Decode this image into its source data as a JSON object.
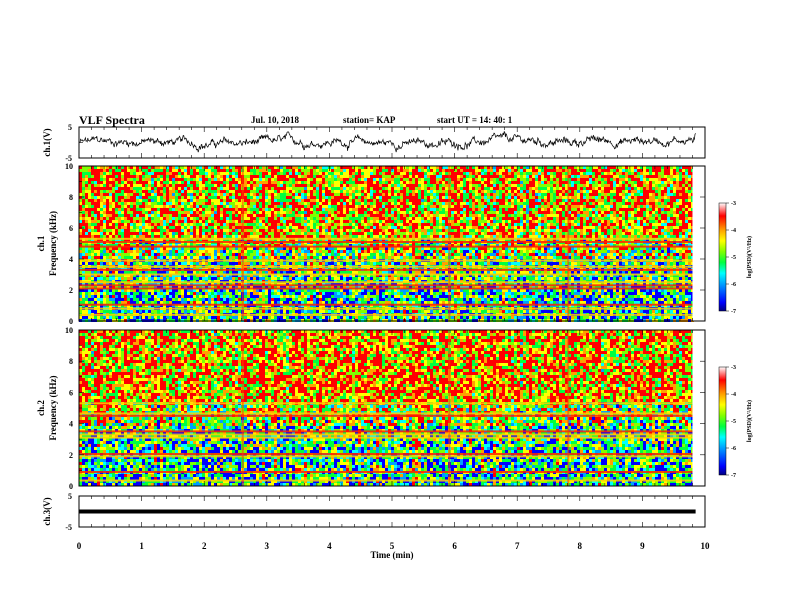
{
  "header": {
    "title": "VLF Spectra",
    "date": "Jul. 10, 2018",
    "station": "station= KAP",
    "start": "start  UT =   14: 40: 1"
  },
  "colors": {
    "spectrogram_colormap": [
      "#000080",
      "#0000ff",
      "#00a0ff",
      "#00ffff",
      "#00ff40",
      "#80ff00",
      "#ffff00",
      "#ffa000",
      "#ff0000",
      "#ffffff"
    ],
    "trace": "#000000"
  },
  "chart_data": [
    {
      "type": "line",
      "ylabel": "ch.1(V)",
      "ylim": [
        -5,
        5
      ],
      "yticks": [
        "5",
        "-5"
      ],
      "xlim": [
        0,
        10
      ],
      "description_series": "noisy waveform fluctuating near 0 V"
    },
    {
      "type": "heatmap",
      "ylabel": "ch.1\nFrequency (kHz)",
      "ylabel_lines": [
        "ch.1",
        "Frequency (kHz)"
      ],
      "ylim": [
        0,
        10
      ],
      "yticks": [
        "0",
        "2",
        "4",
        "6",
        "8",
        "10"
      ],
      "xlim": [
        0,
        10
      ],
      "colorbar": {
        "label": "log(PSD)(V²/Hz)",
        "ticks": [
          "-3",
          "-4",
          "-5",
          "-6",
          "-7"
        ],
        "range": [
          -7,
          -3
        ]
      },
      "horizontal_lines_khz": [
        0.4,
        0.8,
        1.05,
        2.1,
        2.3,
        2.5,
        3.0,
        3.3,
        3.5,
        3.9,
        4.8,
        5.1,
        5.3
      ],
      "data_end_min": 9.8
    },
    {
      "type": "heatmap",
      "ylabel_lines": [
        "ch.2",
        "Frequency (kHz)"
      ],
      "ylim": [
        0,
        10
      ],
      "yticks": [
        "0",
        "2",
        "4",
        "6",
        "8",
        "10"
      ],
      "xlim": [
        0,
        10
      ],
      "colorbar": {
        "label": "log(PSD)(V²/Hz)",
        "ticks": [
          "-3",
          "-4",
          "-5",
          "-6",
          "-7"
        ],
        "range": [
          -7,
          -3
        ]
      },
      "horizontal_lines_khz": [
        0.35,
        0.9,
        1.9,
        2.05,
        3.1,
        3.3,
        3.5,
        4.5,
        4.65,
        5.3
      ],
      "data_end_min": 9.8
    },
    {
      "type": "line",
      "ylabel": "ch.3(V)",
      "ylim": [
        -5,
        5
      ],
      "yticks": [
        "5",
        "-5"
      ],
      "xlim": [
        0,
        10
      ],
      "xticks": [
        "0",
        "1",
        "2",
        "3",
        "4",
        "5",
        "6",
        "7",
        "8",
        "9",
        "10"
      ],
      "xlabel": "Time (min)",
      "series_value": 0
    }
  ]
}
